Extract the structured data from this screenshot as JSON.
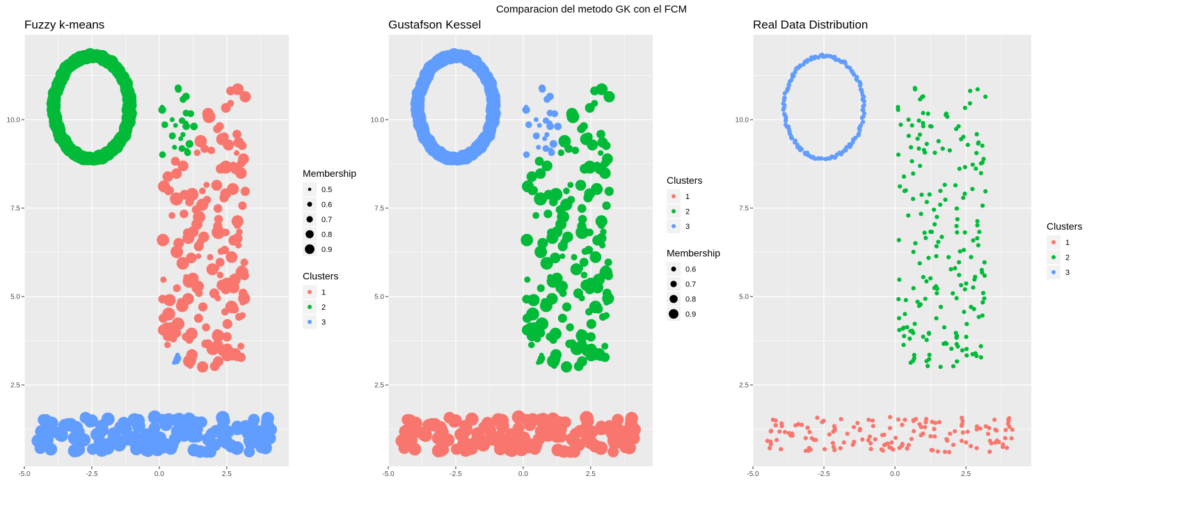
{
  "figure": {
    "title": "Comparacion del metodo GK con el FCM"
  },
  "colors": {
    "panel_background": "#ebebeb",
    "grid": "#ffffff",
    "cluster_1": "#F8766D",
    "cluster_2": "#00BA38",
    "cluster_3": "#619CFF",
    "legend_key_background": "#f2f2f2"
  },
  "chart_data": [
    {
      "type": "scatter",
      "title": "Fuzzy k-means",
      "xlabel": "",
      "ylabel": "",
      "xlim": [
        -5.0,
        4.8
      ],
      "ylim": [
        0.2,
        12.4
      ],
      "x_ticks": [
        -5.0,
        -2.5,
        0.0,
        2.5
      ],
      "x_tick_labels": [
        "-5.0",
        "-2.5",
        "0.0",
        "2.5"
      ],
      "y_ticks": [
        2.5,
        5.0,
        7.5,
        10.0
      ],
      "y_tick_labels": [
        "2.5",
        "5.0",
        "7.5",
        "10.0"
      ],
      "grid": true,
      "size_encoding": "Membership",
      "color_encoding": "Clusters",
      "cluster_assignment": {
        "ring": "2",
        "bottom_band": "3",
        "rectangle_main": "1",
        "rectangle_top_left": "2",
        "rectangle_bottom_left": "3"
      },
      "legends": [
        {
          "title": "Membership",
          "kind": "size",
          "entries": [
            "0.5",
            "0.6",
            "0.7",
            "0.8",
            "0.9"
          ],
          "values": [
            0.5,
            0.6,
            0.7,
            0.8,
            0.9
          ]
        },
        {
          "title": "Clusters",
          "kind": "color",
          "entries": [
            "1",
            "2",
            "3"
          ]
        }
      ]
    },
    {
      "type": "scatter",
      "title": "Gustafson Kessel",
      "xlabel": "",
      "ylabel": "",
      "xlim": [
        -5.0,
        4.8
      ],
      "ylim": [
        0.2,
        12.4
      ],
      "x_ticks": [
        -5.0,
        -2.5,
        0.0,
        2.5
      ],
      "x_tick_labels": [
        "-5.0",
        "-2.5",
        "0.0",
        "2.5"
      ],
      "y_ticks": [
        2.5,
        5.0,
        7.5,
        10.0
      ],
      "y_tick_labels": [
        "2.5",
        "5.0",
        "7.5",
        "10.0"
      ],
      "grid": true,
      "size_encoding": "Membership",
      "color_encoding": "Clusters",
      "cluster_assignment": {
        "ring": "3",
        "bottom_band": "1",
        "rectangle_main": "2",
        "rectangle_top_left": "3",
        "rectangle_bottom_left": "2"
      },
      "legends": [
        {
          "title": "Clusters",
          "kind": "color",
          "entries": [
            "1",
            "2",
            "3"
          ]
        },
        {
          "title": "Membership",
          "kind": "size",
          "entries": [
            "0.6",
            "0.7",
            "0.8",
            "0.9"
          ],
          "values": [
            0.6,
            0.7,
            0.8,
            0.9
          ]
        }
      ]
    },
    {
      "type": "scatter",
      "title": "Real Data Distribution",
      "xlabel": "",
      "ylabel": "",
      "xlim": [
        -5.0,
        4.8
      ],
      "ylim": [
        0.2,
        12.4
      ],
      "x_ticks": [
        -5.0,
        -2.5,
        0.0,
        2.5
      ],
      "x_tick_labels": [
        "-5.0",
        "-2.5",
        "0.0",
        "2.5"
      ],
      "y_ticks": [
        2.5,
        5.0,
        7.5,
        10.0
      ],
      "y_tick_labels": [
        "2.5",
        "5.0",
        "7.5",
        "10.0"
      ],
      "grid": true,
      "size_encoding": "none",
      "color_encoding": "Clusters",
      "cluster_assignment": {
        "ring": "3",
        "bottom_band": "1",
        "rectangle_main": "2",
        "rectangle_top_left": "2",
        "rectangle_bottom_left": "2"
      },
      "legends": [
        {
          "title": "Clusters",
          "kind": "color",
          "entries": [
            "1",
            "2",
            "3"
          ]
        }
      ]
    }
  ],
  "data_shapes": {
    "ring": {
      "center": [
        -2.5,
        10.35
      ],
      "radius_x": 1.4,
      "radius_y": 1.45,
      "points": 140
    },
    "bottom_band": {
      "x_range": [
        -4.6,
        4.3
      ],
      "y_range": [
        0.6,
        1.6
      ],
      "points": 150
    },
    "rectangle": {
      "x_range": [
        0.1,
        3.2
      ],
      "y_range": [
        3.0,
        10.9
      ],
      "points": 200
    }
  }
}
